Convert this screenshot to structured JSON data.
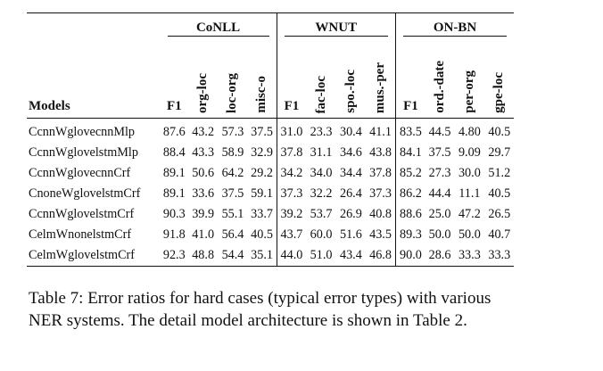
{
  "table": {
    "groups": [
      {
        "name": "CoNLL",
        "columns": [
          "F1",
          "org-loc",
          "loc-org",
          "misc-o"
        ]
      },
      {
        "name": "WNUT",
        "columns": [
          "F1",
          "fac-loc",
          "spo.-loc",
          "mus.-per"
        ]
      },
      {
        "name": "ON-BN",
        "columns": [
          "F1",
          "ord.-date",
          "per-org",
          "gpe-loc"
        ]
      }
    ],
    "models_header": "Models",
    "rows": [
      {
        "model": "CcnnWglovecnnMlp",
        "values": [
          "87.6",
          "43.2",
          "57.3",
          "37.5",
          "31.0",
          "23.3",
          "30.4",
          "41.1",
          "83.5",
          "44.5",
          "4.80",
          "40.5"
        ]
      },
      {
        "model": "CcnnWglovelstmMlp",
        "values": [
          "88.4",
          "43.3",
          "58.9",
          "32.9",
          "37.8",
          "31.1",
          "34.6",
          "43.8",
          "84.1",
          "37.5",
          "9.09",
          "29.7"
        ]
      },
      {
        "model": "CcnnWglovecnnCrf",
        "values": [
          "89.1",
          "50.6",
          "64.2",
          "29.2",
          "34.2",
          "34.0",
          "34.4",
          "37.8",
          "85.2",
          "27.3",
          "30.0",
          "51.2"
        ]
      },
      {
        "model": "CnoneWglovelstmCrf",
        "values": [
          "89.1",
          "33.6",
          "37.5",
          "59.1",
          "37.3",
          "32.2",
          "26.4",
          "37.3",
          "86.2",
          "44.4",
          "11.1",
          "40.5"
        ]
      },
      {
        "model": "CcnnWglovelstmCrf",
        "values": [
          "90.3",
          "39.9",
          "55.1",
          "33.7",
          "39.2",
          "53.7",
          "26.9",
          "40.8",
          "88.6",
          "25.0",
          "47.2",
          "26.5"
        ]
      },
      {
        "model": "CelmWnonelstmCrf",
        "values": [
          "91.8",
          "41.0",
          "56.4",
          "40.5",
          "43.7",
          "60.0",
          "51.6",
          "43.5",
          "89.3",
          "50.0",
          "50.0",
          "40.7"
        ]
      },
      {
        "model": "CelmWglovelstmCrf",
        "values": [
          "92.3",
          "48.8",
          "54.4",
          "35.1",
          "44.0",
          "51.0",
          "43.4",
          "46.8",
          "90.0",
          "28.6",
          "33.3",
          "33.3"
        ]
      }
    ]
  },
  "caption": "Table 7: Error ratios for hard cases (typical error types) with various NER systems. The detail model architecture is shown in Table 2."
}
